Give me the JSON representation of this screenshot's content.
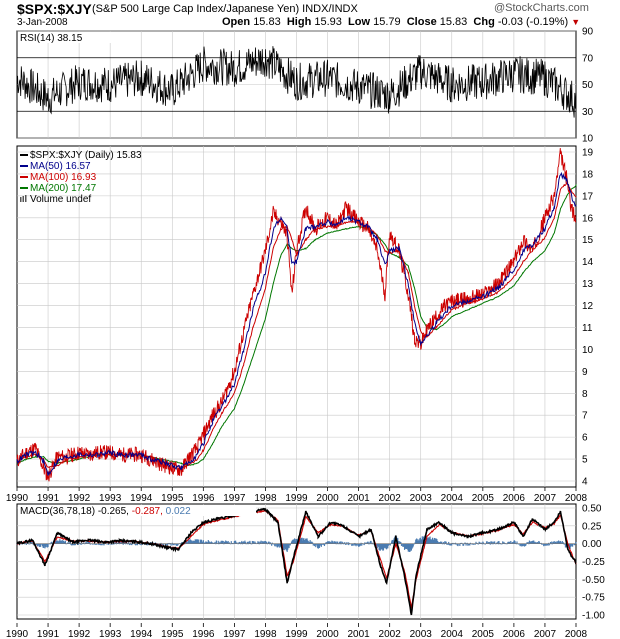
{
  "header": {
    "symbol": "$SPX:$XJY",
    "description": "(S&P 500 Large Cap Index/Japanese Yen) INDX/INDX",
    "date": "3-Jan-2008",
    "open_label": "Open",
    "open": "15.83",
    "high_label": "High",
    "high": "15.93",
    "low_label": "Low",
    "low": "15.79",
    "close_label": "Close",
    "close": "15.83",
    "chg_label": "Chg",
    "chg": "-0.03 (-0.19%)",
    "chg_arrow": "▼",
    "brand": "@StockCharts.com"
  },
  "colors": {
    "price": "#cc0000",
    "ma50": "#00008b",
    "ma100": "#cc0000",
    "ma200": "#007700",
    "macd_line": "#000000",
    "macd_fast": "#cc0000",
    "macd_hist": "#4a7bb0",
    "rsi": "#000000",
    "grid": "#c8c8c8"
  },
  "chart_data": [
    {
      "type": "line",
      "panel": "rsi",
      "label": "RSI(14) 38.15",
      "ylim": [
        10,
        90
      ],
      "yticks": [
        10,
        30,
        50,
        70,
        90
      ],
      "reference_lines": [
        30,
        70
      ],
      "note_values_oscillate": true,
      "x": [
        1990.0,
        1991.0,
        1992.0,
        1993.0,
        1994.0,
        1995.0,
        1996.0,
        1997.0,
        1998.0,
        1999.0,
        2000.0,
        2001.0,
        2002.0,
        2003.0,
        2004.0,
        2005.0,
        2006.0,
        2007.0,
        2008.0
      ],
      "values": [
        55,
        40,
        52,
        50,
        55,
        45,
        65,
        62,
        70,
        52,
        55,
        48,
        42,
        60,
        50,
        52,
        58,
        55,
        38
      ]
    },
    {
      "type": "line",
      "panel": "price",
      "ylim": [
        4,
        19
      ],
      "yticks": [
        4,
        5,
        6,
        7,
        8,
        9,
        10,
        11,
        12,
        13,
        14,
        15,
        16,
        17,
        18,
        19
      ],
      "legend": [
        {
          "name": "$SPX:$XJY (Daily) 15.83",
          "color": "#000000",
          "marker": "line"
        },
        {
          "name": "MA(50) 16.57",
          "color": "#00008b",
          "marker": "line"
        },
        {
          "name": "MA(100) 16.93",
          "color": "#cc0000",
          "marker": "line"
        },
        {
          "name": "MA(200) 17.47",
          "color": "#007700",
          "marker": "line"
        },
        {
          "name": "Volume undef",
          "color": "#555555",
          "marker": "bars"
        }
      ],
      "x": [
        1990.0,
        1990.3,
        1990.6,
        1990.85,
        1991.0,
        1991.3,
        1991.6,
        1992.0,
        1992.3,
        1992.6,
        1993.0,
        1993.3,
        1993.6,
        1994.0,
        1994.3,
        1994.6,
        1995.0,
        1995.3,
        1995.5,
        1995.8,
        1996.0,
        1996.3,
        1996.6,
        1997.0,
        1997.3,
        1997.6,
        1998.0,
        1998.25,
        1998.5,
        1998.7,
        1998.85,
        1999.0,
        1999.3,
        1999.6,
        2000.0,
        2000.3,
        2000.6,
        2001.0,
        2001.3,
        2001.6,
        2001.85,
        2002.0,
        2002.3,
        2002.6,
        2002.8,
        2003.0,
        2003.2,
        2003.5,
        2003.8,
        2004.0,
        2004.5,
        2005.0,
        2005.5,
        2006.0,
        2006.3,
        2006.6,
        2007.0,
        2007.3,
        2007.5,
        2007.7,
        2007.85,
        2008.0
      ],
      "series": [
        {
          "name": "$SPX:$XJY",
          "color": "#cc0000",
          "values": [
            4.9,
            5.3,
            5.5,
            4.6,
            4.2,
            5.1,
            5.1,
            5.3,
            5.2,
            5.3,
            5.3,
            5.2,
            5.2,
            5.2,
            5.0,
            4.8,
            4.6,
            4.5,
            5.0,
            5.5,
            6.1,
            7.0,
            7.6,
            9.0,
            10.8,
            12.5,
            14.5,
            16.2,
            15.8,
            15.2,
            12.5,
            14.5,
            16.5,
            15.5,
            16.0,
            15.6,
            16.5,
            15.8,
            15.5,
            14.5,
            12.5,
            15.3,
            14.5,
            12.5,
            10.5,
            10.2,
            10.9,
            11.5,
            12.0,
            12.2,
            12.3,
            12.5,
            13.0,
            14.0,
            15.0,
            14.5,
            16.0,
            17.0,
            18.9,
            17.8,
            16.5,
            15.8
          ]
        },
        {
          "name": "MA(50)",
          "color": "#00008b",
          "values": [
            4.9,
            5.2,
            5.3,
            4.9,
            4.3,
            4.9,
            5.1,
            5.2,
            5.2,
            5.2,
            5.3,
            5.2,
            5.2,
            5.2,
            5.0,
            4.9,
            4.7,
            4.6,
            4.8,
            5.2,
            5.7,
            6.7,
            7.4,
            8.4,
            10.0,
            11.8,
            13.5,
            15.5,
            16.0,
            15.5,
            14.0,
            14.0,
            15.5,
            15.6,
            15.8,
            15.7,
            16.0,
            15.8,
            15.6,
            15.0,
            13.8,
            14.5,
            14.6,
            13.0,
            11.2,
            10.3,
            10.6,
            11.2,
            11.7,
            12.0,
            12.2,
            12.4,
            12.8,
            13.6,
            14.5,
            14.8,
            15.5,
            16.5,
            18.0,
            17.8,
            17.0,
            16.57
          ]
        },
        {
          "name": "MA(100)",
          "color": "#cc0000",
          "values": [
            4.9,
            5.1,
            5.2,
            5.0,
            4.6,
            4.7,
            5.0,
            5.1,
            5.2,
            5.2,
            5.2,
            5.2,
            5.2,
            5.2,
            5.1,
            4.9,
            4.8,
            4.6,
            4.7,
            5.0,
            5.4,
            6.3,
            7.1,
            8.0,
            9.3,
            11.0,
            12.8,
            14.6,
            15.5,
            15.6,
            15.0,
            14.3,
            15.0,
            15.5,
            15.6,
            15.6,
            15.8,
            15.8,
            15.6,
            15.2,
            14.5,
            14.4,
            14.5,
            13.5,
            12.0,
            10.8,
            10.6,
            11.0,
            11.5,
            11.8,
            12.1,
            12.3,
            12.6,
            13.3,
            14.0,
            14.5,
            15.1,
            16.0,
            17.3,
            17.6,
            17.2,
            16.93
          ]
        },
        {
          "name": "MA(200)",
          "color": "#007700",
          "values": [
            4.8,
            5.0,
            5.1,
            5.1,
            4.9,
            4.8,
            4.9,
            5.0,
            5.1,
            5.2,
            5.2,
            5.2,
            5.2,
            5.2,
            5.1,
            5.0,
            4.9,
            4.8,
            4.7,
            4.8,
            5.0,
            5.7,
            6.5,
            7.3,
            8.4,
            9.7,
            11.4,
            13.0,
            14.3,
            14.8,
            14.6,
            14.5,
            14.6,
            15.0,
            15.3,
            15.4,
            15.5,
            15.6,
            15.5,
            15.2,
            14.8,
            14.4,
            14.2,
            13.8,
            12.8,
            11.5,
            11.0,
            10.9,
            11.2,
            11.5,
            11.8,
            12.1,
            12.4,
            12.9,
            13.5,
            14.0,
            14.5,
            15.3,
            16.4,
            17.0,
            17.3,
            17.47
          ]
        }
      ]
    },
    {
      "type": "line",
      "panel": "macd",
      "label_prefix": "MACD(36,78,18)",
      "label_values": [
        "-0.265",
        "-0.287",
        "0.022"
      ],
      "ylim": [
        -1.0,
        0.5
      ],
      "yticks": [
        -1.0,
        -0.75,
        -0.5,
        -0.25,
        0.0,
        0.25,
        0.5
      ],
      "ytick_labels": [
        "-1.00",
        "-0.75",
        "-0.50",
        "-0.25",
        "0.00",
        "0.25",
        "0.50"
      ],
      "x": [
        1990.0,
        1990.5,
        1990.9,
        1991.3,
        1991.8,
        1992.3,
        1992.8,
        1993.3,
        1993.8,
        1994.3,
        1994.8,
        1995.2,
        1995.6,
        1996.0,
        1996.5,
        1997.0,
        1997.5,
        1998.0,
        1998.4,
        1998.7,
        1998.9,
        1999.3,
        1999.7,
        2000.1,
        2000.5,
        2001.0,
        2001.4,
        2001.7,
        2001.9,
        2002.2,
        2002.5,
        2002.7,
        2002.85,
        2003.2,
        2003.6,
        2004.0,
        2004.5,
        2005.0,
        2005.5,
        2006.0,
        2006.3,
        2006.6,
        2007.0,
        2007.3,
        2007.5,
        2007.75,
        2008.0
      ],
      "series": [
        {
          "name": "MACD",
          "color": "#000000",
          "values": [
            0.0,
            0.05,
            -0.3,
            0.15,
            0.02,
            0.05,
            0.02,
            0.04,
            0.03,
            0.0,
            -0.05,
            -0.08,
            0.15,
            0.3,
            0.35,
            0.4,
            0.45,
            0.48,
            0.3,
            -0.55,
            -0.2,
            0.45,
            0.1,
            0.3,
            0.25,
            0.1,
            0.2,
            -0.3,
            -0.55,
            0.1,
            -0.5,
            -1.0,
            -0.45,
            0.2,
            0.3,
            0.15,
            0.1,
            0.15,
            0.2,
            0.3,
            0.1,
            0.35,
            0.2,
            0.3,
            0.45,
            -0.1,
            -0.265
          ]
        },
        {
          "name": "Signal",
          "color": "#cc0000",
          "values": [
            0.0,
            0.04,
            -0.25,
            0.1,
            0.03,
            0.04,
            0.02,
            0.03,
            0.03,
            0.0,
            -0.04,
            -0.07,
            0.1,
            0.27,
            0.33,
            0.38,
            0.43,
            0.46,
            0.33,
            -0.45,
            -0.25,
            0.38,
            0.15,
            0.27,
            0.24,
            0.12,
            0.18,
            -0.22,
            -0.48,
            0.0,
            -0.42,
            -0.9,
            -0.5,
            0.1,
            0.27,
            0.16,
            0.11,
            0.14,
            0.19,
            0.27,
            0.13,
            0.3,
            0.22,
            0.28,
            0.4,
            -0.02,
            -0.287
          ]
        },
        {
          "name": "Histogram",
          "color": "#4a7bb0",
          "values": [
            0.0,
            0.01,
            -0.05,
            0.05,
            -0.01,
            0.01,
            0.0,
            0.01,
            0.0,
            0.0,
            -0.01,
            -0.01,
            0.05,
            0.03,
            0.02,
            0.02,
            0.02,
            0.02,
            -0.03,
            -0.1,
            0.05,
            0.07,
            -0.05,
            0.03,
            0.01,
            -0.02,
            0.02,
            -0.08,
            -0.07,
            0.1,
            -0.08,
            -0.1,
            0.05,
            0.1,
            0.03,
            -0.01,
            -0.01,
            0.01,
            0.01,
            0.03,
            -0.03,
            0.05,
            -0.02,
            0.02,
            0.05,
            -0.08,
            0.022
          ]
        }
      ]
    }
  ],
  "x_axis": {
    "labels": [
      "1990",
      "1991",
      "1992",
      "1993",
      "1994",
      "1995",
      "1996",
      "1997",
      "1998",
      "1999",
      "2000",
      "2001",
      "2002",
      "2003",
      "2004",
      "2005",
      "2006",
      "2007",
      "2008"
    ],
    "values": [
      1990,
      1991,
      1992,
      1993,
      1994,
      1995,
      1996,
      1997,
      1998,
      1999,
      2000,
      2001,
      2002,
      2003,
      2004,
      2005,
      2006,
      2007,
      2008
    ]
  }
}
